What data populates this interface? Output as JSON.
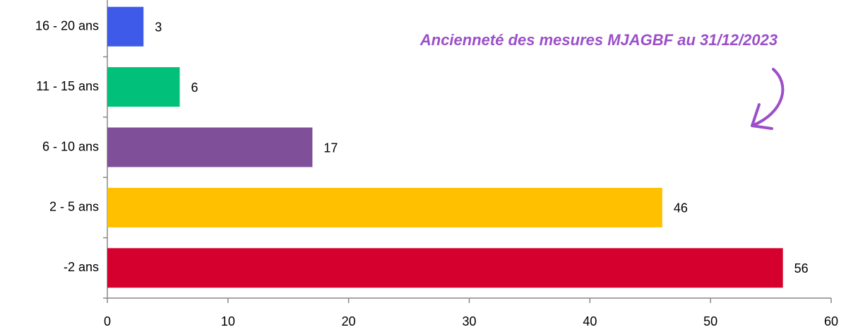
{
  "chart_data": {
    "type": "hbar",
    "title": "Ancienneté des mesures MJAGBF au 31/12/2023",
    "categories": [
      "16 - 20 ans",
      "11 - 15 ans",
      "6 - 10 ans",
      "2 - 5 ans",
      "-2 ans"
    ],
    "values": [
      3,
      6,
      17,
      46,
      56
    ],
    "colors": [
      "#3d5ae8",
      "#00c07a",
      "#7f4f9a",
      "#ffc000",
      "#d6002f"
    ],
    "xlim": [
      0,
      60
    ],
    "xticks": [
      0,
      10,
      20,
      30,
      40,
      50,
      60
    ],
    "grid": false
  }
}
